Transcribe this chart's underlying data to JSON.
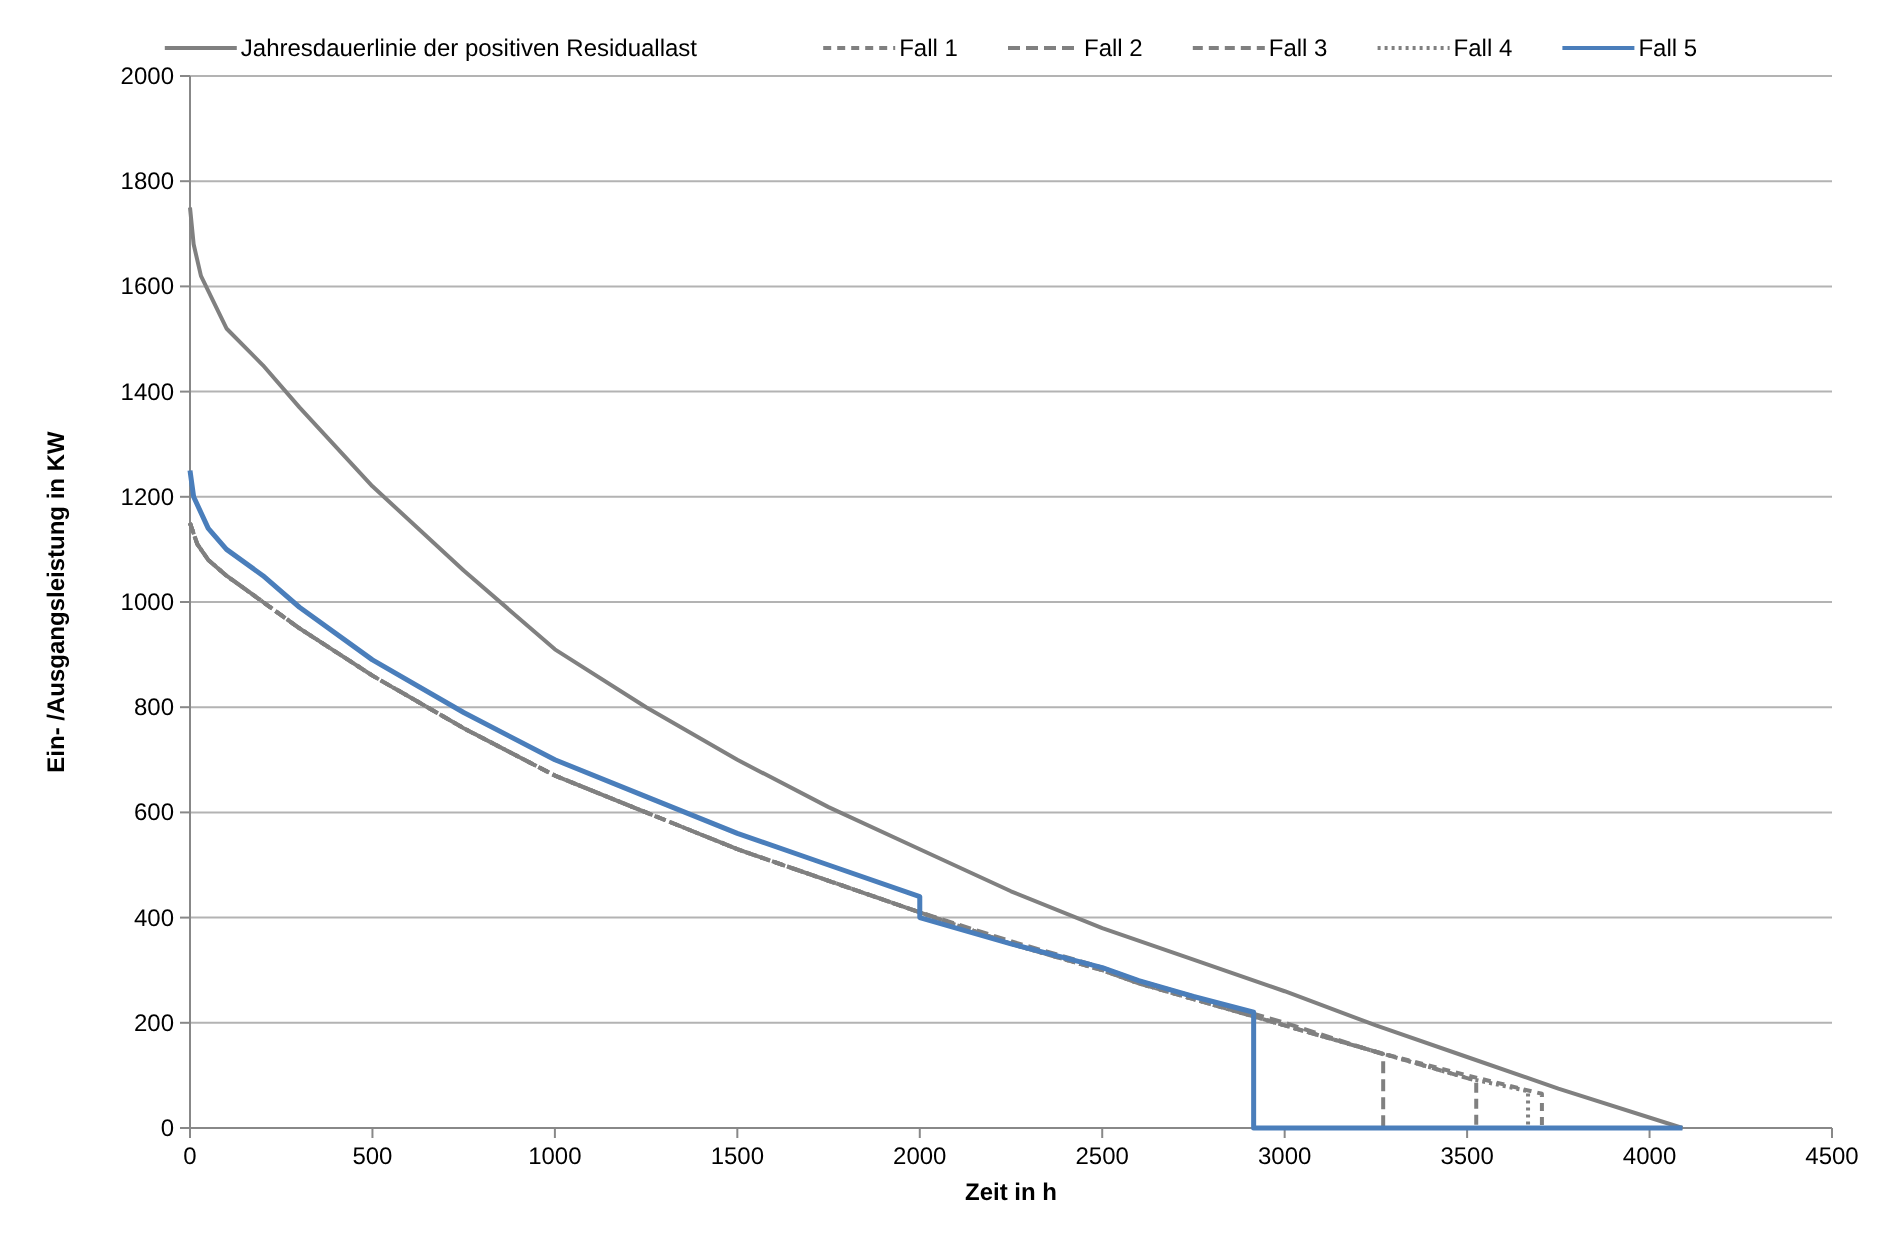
{
  "chart_data": {
    "type": "line",
    "xlabel": "Zeit in h",
    "ylabel": "Ein- /Ausgangsleistung in KW",
    "xlim": [
      0,
      4500
    ],
    "xticks": [
      0,
      500,
      1000,
      1500,
      2000,
      2500,
      3000,
      3500,
      4000,
      4500
    ],
    "ylim": [
      0,
      2000
    ],
    "yticks": [
      0,
      200,
      400,
      600,
      800,
      1000,
      1200,
      1400,
      1600,
      1800,
      2000
    ],
    "grid": "y",
    "legend": "top",
    "series": [
      {
        "name": "Jahresdauerlinie der positiven Residuallast",
        "color": "#808080",
        "line_style": "solid",
        "x": [
          0,
          10,
          30,
          100,
          200,
          300,
          500,
          750,
          1000,
          1250,
          1500,
          1750,
          2000,
          2250,
          2500,
          2750,
          3000,
          3250,
          3500,
          3750,
          4090
        ],
        "values": [
          1750,
          1680,
          1620,
          1520,
          1450,
          1370,
          1220,
          1060,
          910,
          800,
          700,
          610,
          530,
          450,
          380,
          320,
          260,
          195,
          135,
          75,
          0
        ]
      },
      {
        "name": "Fall 1",
        "color": "#808080",
        "line_style": "dashed",
        "x": [
          0,
          20,
          50,
          100,
          200,
          300,
          500,
          750,
          1000,
          1250,
          1500,
          1750,
          2000,
          2250,
          2500,
          2600,
          2750,
          2900,
          3000,
          3250,
          3500,
          3705,
          3705,
          4090
        ],
        "values": [
          1150,
          1110,
          1080,
          1050,
          1000,
          950,
          860,
          760,
          670,
          600,
          530,
          470,
          410,
          350,
          300,
          275,
          245,
          215,
          195,
          145,
          100,
          65,
          0,
          0
        ]
      },
      {
        "name": "Fall 2",
        "color": "#808080",
        "line_style": "dashed",
        "x": [
          0,
          20,
          50,
          100,
          200,
          300,
          500,
          750,
          1000,
          1250,
          1500,
          1750,
          2000,
          2250,
          2500,
          2600,
          2750,
          2900,
          3000,
          3270,
          3270,
          4090
        ],
        "values": [
          1150,
          1110,
          1080,
          1050,
          1000,
          950,
          860,
          760,
          670,
          600,
          530,
          470,
          410,
          355,
          305,
          280,
          250,
          220,
          200,
          140,
          0,
          0
        ]
      },
      {
        "name": "Fall 3",
        "color": "#808080",
        "line_style": "dashed",
        "x": [
          0,
          20,
          50,
          100,
          200,
          300,
          500,
          750,
          1000,
          1250,
          1500,
          1750,
          2000,
          2250,
          2500,
          2600,
          2750,
          2900,
          3000,
          3250,
          3525,
          3525,
          4090
        ],
        "values": [
          1150,
          1110,
          1080,
          1050,
          1000,
          950,
          860,
          760,
          670,
          600,
          530,
          470,
          410,
          350,
          300,
          275,
          245,
          215,
          195,
          145,
          90,
          0,
          0
        ]
      },
      {
        "name": "Fall 4",
        "color": "#808080",
        "line_style": "dotted",
        "x": [
          0,
          20,
          50,
          100,
          200,
          300,
          500,
          750,
          1000,
          1250,
          1500,
          1750,
          2000,
          2250,
          2500,
          2600,
          2750,
          2900,
          3000,
          3250,
          3500,
          3667,
          3667,
          4090
        ],
        "values": [
          1150,
          1110,
          1080,
          1050,
          1000,
          950,
          860,
          760,
          670,
          600,
          530,
          470,
          410,
          350,
          300,
          275,
          245,
          215,
          195,
          145,
          95,
          70,
          0,
          0
        ]
      },
      {
        "name": "Fall 5",
        "color": "#4a7ebb",
        "line_style": "solid",
        "x": [
          0,
          10,
          50,
          100,
          200,
          300,
          500,
          750,
          1000,
          1250,
          1500,
          1750,
          2000,
          2000,
          2250,
          2500,
          2600,
          2750,
          2915,
          2915,
          4090
        ],
        "values": [
          1250,
          1200,
          1140,
          1100,
          1050,
          990,
          890,
          790,
          700,
          630,
          560,
          500,
          440,
          400,
          350,
          305,
          280,
          250,
          220,
          0,
          0
        ]
      }
    ]
  }
}
